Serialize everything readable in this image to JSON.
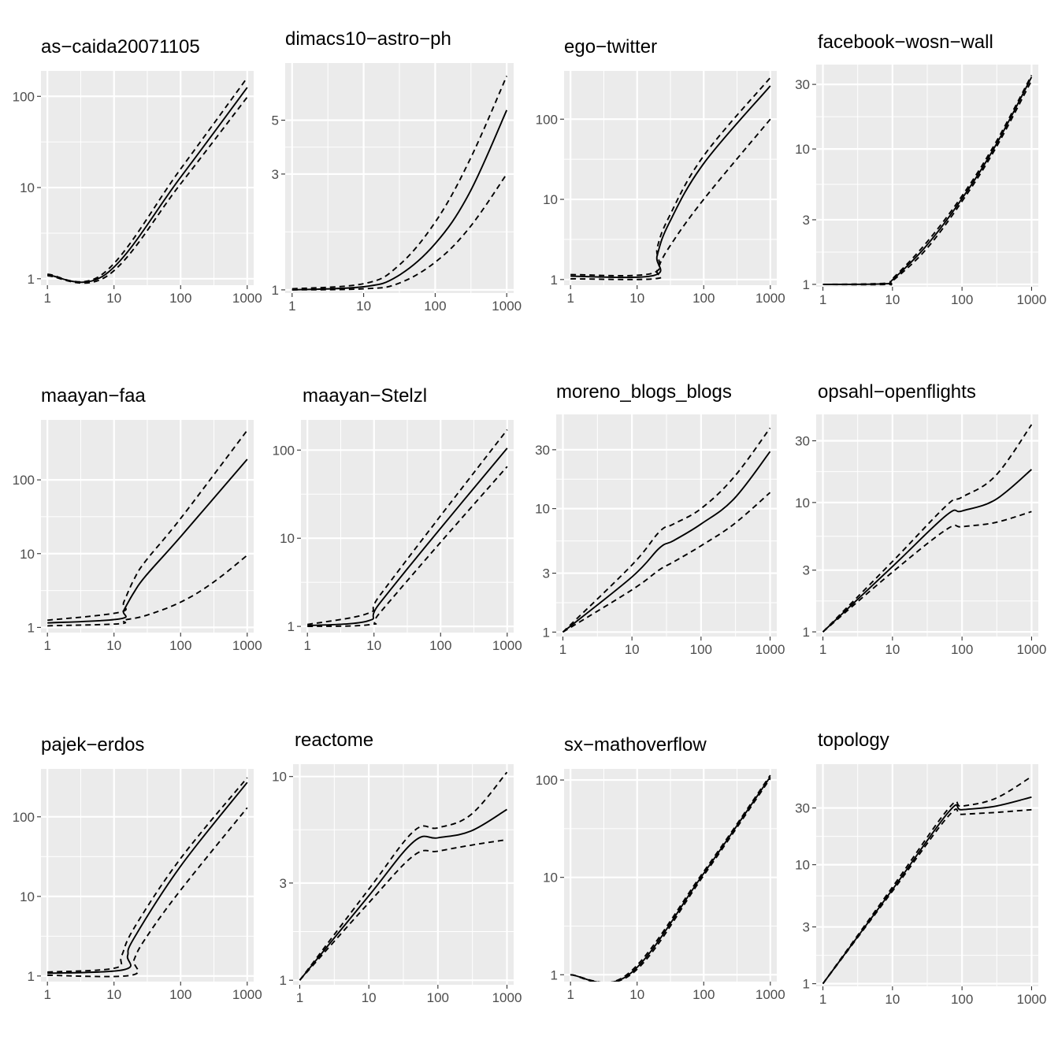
{
  "chart_data": [
    {
      "type": "line",
      "title": "as−caida20071105",
      "x_scale": "log10",
      "y_scale": "log10",
      "xlim": [
        0.8,
        1250
      ],
      "ylim": [
        0.85,
        190
      ],
      "x_ticks": [
        1,
        10,
        100,
        1000
      ],
      "x_tick_labels": [
        "1",
        "10",
        "100",
        "1000"
      ],
      "y_ticks": [
        1,
        10,
        100
      ],
      "y_tick_labels": [
        "1",
        "10",
        "100"
      ],
      "series": [
        {
          "name": "upper",
          "style": "dashed",
          "x": [
            1,
            7,
            100,
            1000
          ],
          "y": [
            1.12,
            1.15,
            16,
            160
          ]
        },
        {
          "name": "estimate",
          "style": "solid",
          "x": [
            1,
            7.5,
            100,
            1000
          ],
          "y": [
            1.1,
            1.12,
            13,
            125
          ]
        },
        {
          "name": "lower",
          "style": "dashed",
          "x": [
            1,
            8,
            100,
            1000
          ],
          "y": [
            1.08,
            1.08,
            11,
            98
          ]
        }
      ]
    },
    {
      "type": "line",
      "title": "dimacs10−astro−ph",
      "x_scale": "log10",
      "y_scale": "log10",
      "xlim": [
        0.8,
        1250
      ],
      "ylim": [
        0.97,
        8.6
      ],
      "x_ticks": [
        1,
        10,
        100,
        1000
      ],
      "x_tick_labels": [
        "1",
        "10",
        "100",
        "1000"
      ],
      "y_ticks": [
        1,
        3,
        5
      ],
      "y_tick_labels": [
        "1",
        "3",
        "5"
      ],
      "series": [
        {
          "name": "upper",
          "style": "dashed",
          "x": [
            1,
            10,
            30,
            100,
            300,
            1000
          ],
          "y": [
            1.01,
            1.06,
            1.25,
            1.9,
            3.4,
            7.6
          ]
        },
        {
          "name": "estimate",
          "style": "solid",
          "x": [
            1,
            10,
            30,
            100,
            300,
            1000
          ],
          "y": [
            1.0,
            1.03,
            1.14,
            1.55,
            2.5,
            5.5
          ]
        },
        {
          "name": "lower",
          "style": "dashed",
          "x": [
            1,
            10,
            30,
            100,
            300,
            1000
          ],
          "y": [
            1.0,
            1.01,
            1.06,
            1.3,
            1.8,
            3.0
          ]
        }
      ]
    },
    {
      "type": "line",
      "title": "ego−twitter",
      "x_scale": "log10",
      "y_scale": "log10",
      "xlim": [
        0.8,
        1250
      ],
      "ylim": [
        0.85,
        400
      ],
      "x_ticks": [
        1,
        10,
        100,
        1000
      ],
      "x_tick_labels": [
        "1",
        "10",
        "100",
        "1000"
      ],
      "y_ticks": [
        1,
        10,
        100
      ],
      "y_tick_labels": [
        "1",
        "10",
        "100"
      ],
      "series": [
        {
          "name": "upper",
          "style": "dashed",
          "x": [
            1,
            17,
            20,
            30,
            100,
            1000
          ],
          "y": [
            1.15,
            1.2,
            2.5,
            6,
            35,
            330
          ]
        },
        {
          "name": "estimate",
          "style": "solid",
          "x": [
            1,
            17.5,
            20,
            30,
            100,
            1000
          ],
          "y": [
            1.1,
            1.12,
            2,
            5,
            28,
            260
          ]
        },
        {
          "name": "lower",
          "style": "dashed",
          "x": [
            1,
            18,
            20,
            30,
            100,
            1000
          ],
          "y": [
            1.02,
            1.02,
            1.3,
            2.5,
            10,
            100
          ]
        }
      ]
    },
    {
      "type": "line",
      "title": "facebook−wosn−wall",
      "x_scale": "log10",
      "y_scale": "log10",
      "xlim": [
        0.8,
        1250
      ],
      "ylim": [
        0.96,
        42
      ],
      "x_ticks": [
        1,
        10,
        100,
        1000
      ],
      "x_tick_labels": [
        "1",
        "10",
        "100",
        "1000"
      ],
      "y_ticks": [
        1,
        3,
        10,
        30
      ],
      "y_tick_labels": [
        "1",
        "3",
        "10",
        "30"
      ],
      "series": [
        {
          "name": "upper",
          "style": "dashed",
          "x": [
            1,
            8,
            10,
            30,
            100,
            300,
            1000
          ],
          "y": [
            1.0,
            1.02,
            1.1,
            2.0,
            4.5,
            11,
            35
          ]
        },
        {
          "name": "estimate",
          "style": "solid",
          "x": [
            1,
            8,
            10,
            30,
            100,
            300,
            1000
          ],
          "y": [
            1.0,
            1.01,
            1.08,
            1.9,
            4.3,
            10.5,
            34
          ]
        },
        {
          "name": "lower",
          "style": "dashed",
          "x": [
            1,
            8,
            10,
            30,
            100,
            300,
            1000
          ],
          "y": [
            1.0,
            1.0,
            1.06,
            1.8,
            4.1,
            10,
            32
          ]
        }
      ]
    },
    {
      "type": "line",
      "title": "maayan−faa",
      "x_scale": "log10",
      "y_scale": "log10",
      "xlim": [
        0.8,
        1250
      ],
      "ylim": [
        0.85,
        650
      ],
      "x_ticks": [
        1,
        10,
        100,
        1000
      ],
      "x_tick_labels": [
        "1",
        "10",
        "100",
        "1000"
      ],
      "y_ticks": [
        1,
        10,
        100
      ],
      "y_tick_labels": [
        "1",
        "10",
        "100"
      ],
      "series": [
        {
          "name": "upper",
          "style": "dashed",
          "x": [
            1,
            12,
            14,
            20,
            30,
            100,
            1000
          ],
          "y": [
            1.25,
            1.6,
            2.2,
            4.5,
            8,
            30,
            470
          ]
        },
        {
          "name": "estimate",
          "style": "solid",
          "x": [
            1,
            12,
            14,
            20,
            30,
            100,
            1000
          ],
          "y": [
            1.15,
            1.3,
            1.7,
            3,
            5,
            17,
            190
          ]
        },
        {
          "name": "lower",
          "style": "dashed",
          "x": [
            1,
            12,
            14,
            30,
            100,
            300,
            1000
          ],
          "y": [
            1.05,
            1.12,
            1.25,
            1.45,
            2.2,
            4,
            9.5
          ]
        }
      ]
    },
    {
      "type": "line",
      "title": "maayan−Stelzl",
      "x_scale": "log10",
      "y_scale": "log10",
      "xlim": [
        0.8,
        1250
      ],
      "ylim": [
        0.85,
        220
      ],
      "x_ticks": [
        1,
        10,
        100,
        1000
      ],
      "x_tick_labels": [
        "1",
        "10",
        "100",
        "1000"
      ],
      "y_ticks": [
        1,
        10,
        100
      ],
      "y_tick_labels": [
        "1",
        "10",
        "100"
      ],
      "series": [
        {
          "name": "upper",
          "style": "dashed",
          "x": [
            1,
            8,
            12,
            100,
            1000
          ],
          "y": [
            1.05,
            1.4,
            2.2,
            18,
            170
          ]
        },
        {
          "name": "estimate",
          "style": "solid",
          "x": [
            1,
            8,
            12,
            100,
            1000
          ],
          "y": [
            1.02,
            1.15,
            1.8,
            13,
            105
          ]
        },
        {
          "name": "lower",
          "style": "dashed",
          "x": [
            1,
            9,
            12,
            100,
            1000
          ],
          "y": [
            1.0,
            1.05,
            1.4,
            9,
            65
          ]
        }
      ]
    },
    {
      "type": "line",
      "title": "moreno_blogs_blogs",
      "x_scale": "log10",
      "y_scale": "log10",
      "xlim": [
        0.8,
        1250
      ],
      "ylim": [
        0.92,
        58
      ],
      "x_ticks": [
        1,
        10,
        100,
        1000
      ],
      "x_tick_labels": [
        "1",
        "10",
        "100",
        "1000"
      ],
      "y_ticks": [
        1,
        3,
        10,
        30
      ],
      "y_tick_labels": [
        "1",
        "3",
        "10",
        "30"
      ],
      "series": [
        {
          "name": "upper",
          "style": "dashed",
          "x": [
            1,
            10,
            25,
            40,
            100,
            300,
            1000
          ],
          "y": [
            1.0,
            3.5,
            6.5,
            7.5,
            10,
            18,
            45
          ]
        },
        {
          "name": "estimate",
          "style": "solid",
          "x": [
            1,
            10,
            25,
            40,
            100,
            300,
            1000
          ],
          "y": [
            1.0,
            2.8,
            4.8,
            5.5,
            7.5,
            12,
            29
          ]
        },
        {
          "name": "lower",
          "style": "dashed",
          "x": [
            1,
            10,
            25,
            40,
            100,
            300,
            1000
          ],
          "y": [
            1.0,
            2.2,
            3.2,
            3.7,
            5,
            7.5,
            13.5
          ]
        }
      ]
    },
    {
      "type": "line",
      "title": "opsahl−openflights",
      "x_scale": "log10",
      "y_scale": "log10",
      "xlim": [
        0.8,
        1250
      ],
      "ylim": [
        0.92,
        48
      ],
      "x_ticks": [
        1,
        10,
        100,
        1000
      ],
      "x_tick_labels": [
        "1",
        "10",
        "100",
        "1000"
      ],
      "y_ticks": [
        1,
        3,
        10,
        30
      ],
      "y_tick_labels": [
        "1",
        "3",
        "10",
        "30"
      ],
      "series": [
        {
          "name": "upper",
          "style": "dashed",
          "x": [
            1,
            10,
            60,
            100,
            300,
            1000
          ],
          "y": [
            1.0,
            3.5,
            9.5,
            11,
            16,
            40
          ]
        },
        {
          "name": "estimate",
          "style": "solid",
          "x": [
            1,
            10,
            60,
            100,
            300,
            1000
          ],
          "y": [
            1.0,
            3.2,
            8,
            8.6,
            10.5,
            18
          ]
        },
        {
          "name": "lower",
          "style": "dashed",
          "x": [
            1,
            10,
            60,
            100,
            300,
            1000
          ],
          "y": [
            1.0,
            2.9,
            6.2,
            6.5,
            7,
            8.5
          ]
        }
      ]
    },
    {
      "type": "line",
      "title": "pajek−erdos",
      "x_scale": "log10",
      "y_scale": "log10",
      "xlim": [
        0.8,
        1250
      ],
      "ylim": [
        0.85,
        400
      ],
      "x_ticks": [
        1,
        10,
        100,
        1000
      ],
      "x_tick_labels": [
        "1",
        "10",
        "100",
        "1000"
      ],
      "y_ticks": [
        1,
        10,
        100
      ],
      "y_tick_labels": [
        "1",
        "10",
        "100"
      ],
      "series": [
        {
          "name": "upper",
          "style": "dashed",
          "x": [
            1,
            10,
            13,
            20,
            100,
            1000
          ],
          "y": [
            1.12,
            1.25,
            1.8,
            4,
            30,
            310
          ]
        },
        {
          "name": "estimate",
          "style": "solid",
          "x": [
            1,
            14,
            16,
            20,
            100,
            1000
          ],
          "y": [
            1.08,
            1.2,
            1.8,
            3,
            24,
            270
          ]
        },
        {
          "name": "lower",
          "style": "dashed",
          "x": [
            1,
            18,
            20,
            30,
            100,
            1000
          ],
          "y": [
            1.02,
            1.02,
            1.6,
            3,
            12,
            130
          ]
        }
      ]
    },
    {
      "type": "line",
      "title": "reactome",
      "x_scale": "log10",
      "y_scale": "log10",
      "xlim": [
        0.8,
        1250
      ],
      "ylim": [
        0.95,
        11.5
      ],
      "x_ticks": [
        1,
        10,
        100,
        1000
      ],
      "x_tick_labels": [
        "1",
        "10",
        "100",
        "1000"
      ],
      "y_ticks": [
        1,
        3,
        10
      ],
      "y_tick_labels": [
        "1",
        "3",
        "10"
      ],
      "series": [
        {
          "name": "upper",
          "style": "dashed",
          "x": [
            1,
            10,
            45,
            100,
            300,
            1000
          ],
          "y": [
            1.0,
            2.8,
            5.4,
            5.6,
            6.5,
            10.5
          ]
        },
        {
          "name": "estimate",
          "style": "solid",
          "x": [
            1,
            10,
            45,
            100,
            300,
            1000
          ],
          "y": [
            1.0,
            2.6,
            4.8,
            5.0,
            5.4,
            6.9
          ]
        },
        {
          "name": "lower",
          "style": "dashed",
          "x": [
            1,
            10,
            45,
            100,
            300,
            1000
          ],
          "y": [
            1.0,
            2.4,
            4.1,
            4.3,
            4.6,
            4.9
          ]
        }
      ]
    },
    {
      "type": "line",
      "title": "sx−mathoverflow",
      "x_scale": "log10",
      "y_scale": "log10",
      "xlim": [
        0.8,
        1250
      ],
      "ylim": [
        0.85,
        130
      ],
      "x_ticks": [
        1,
        10,
        100,
        1000
      ],
      "x_tick_labels": [
        "1",
        "10",
        "100",
        "1000"
      ],
      "y_ticks": [
        1,
        10,
        100
      ],
      "y_tick_labels": [
        "1",
        "10",
        "100"
      ],
      "series": [
        {
          "name": "upper",
          "style": "dashed",
          "x": [
            1,
            7,
            100,
            1000
          ],
          "y": [
            1.0,
            1.0,
            11.5,
            112
          ]
        },
        {
          "name": "estimate",
          "style": "solid",
          "x": [
            1,
            7.5,
            100,
            1000
          ],
          "y": [
            1.0,
            1.0,
            11,
            108
          ]
        },
        {
          "name": "lower",
          "style": "dashed",
          "x": [
            1,
            8,
            100,
            1000
          ],
          "y": [
            1.0,
            1.0,
            10.5,
            104
          ]
        }
      ]
    },
    {
      "type": "line",
      "title": "topology",
      "x_scale": "log10",
      "y_scale": "log10",
      "xlim": [
        0.8,
        1250
      ],
      "ylim": [
        0.95,
        70
      ],
      "x_ticks": [
        1,
        10,
        100,
        1000
      ],
      "x_tick_labels": [
        "1",
        "10",
        "100",
        "1000"
      ],
      "y_ticks": [
        1,
        3,
        10,
        30
      ],
      "y_tick_labels": [
        "1",
        "3",
        "10",
        "30"
      ],
      "series": [
        {
          "name": "upper",
          "style": "dashed",
          "x": [
            1,
            10,
            65,
            100,
            300,
            1000
          ],
          "y": [
            1.0,
            6.5,
            30,
            31,
            36,
            55
          ]
        },
        {
          "name": "estimate",
          "style": "solid",
          "x": [
            1,
            10,
            65,
            100,
            300,
            1000
          ],
          "y": [
            1.0,
            6.2,
            28,
            29,
            31,
            37
          ]
        },
        {
          "name": "lower",
          "style": "dashed",
          "x": [
            1,
            10,
            65,
            100,
            300,
            1000
          ],
          "y": [
            1.0,
            6.0,
            26,
            26.5,
            27.5,
            29
          ]
        }
      ]
    }
  ]
}
